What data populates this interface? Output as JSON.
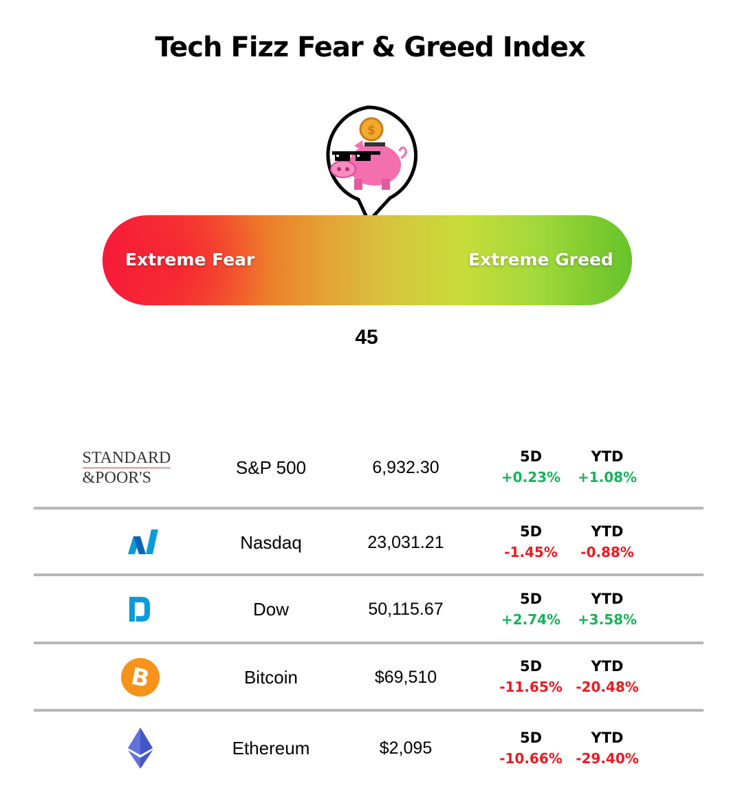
{
  "title": "Tech Fizz Fear & Greed Index",
  "gauge": {
    "left_label": "Extreme Fear",
    "right_label": "Extreme Greed",
    "value": "45",
    "colors": {
      "fear": "#f7193a",
      "neutral": "#d7c43d",
      "greed": "#66c22a"
    }
  },
  "table": {
    "rows": [
      {
        "logo": "standard-and-poors-logo",
        "logo_text_1": "STANDARD",
        "logo_text_2": "&POOR'S",
        "name": "S&P 500",
        "price": "6,932.30",
        "h5d": "5D",
        "hytd": "YTD",
        "d5": "+0.23%",
        "ytd": "+1.08%"
      },
      {
        "logo": "nasdaq-icon",
        "name": "Nasdaq",
        "price": "23,031.21",
        "h5d": "5D",
        "hytd": "YTD",
        "d5": "-1.45%",
        "ytd": "-0.88%"
      },
      {
        "logo": "dow-icon",
        "name": "Dow",
        "price": "50,115.67",
        "h5d": "5D",
        "hytd": "YTD",
        "d5": "+2.74%",
        "ytd": "+3.58%"
      },
      {
        "logo": "bitcoin-icon",
        "name": "Bitcoin",
        "price": "$69,510",
        "h5d": "5D",
        "hytd": "YTD",
        "d5": "-11.65%",
        "ytd": "-20.48%"
      },
      {
        "logo": "ethereum-icon",
        "name": "Ethereum",
        "price": "$2,095",
        "h5d": "5D",
        "hytd": "YTD",
        "d5": "-10.66%",
        "ytd": "-29.40%"
      }
    ],
    "colors": {
      "positive": "#17b35a",
      "negative": "#f01820",
      "divider": "#b7b7b7"
    }
  }
}
